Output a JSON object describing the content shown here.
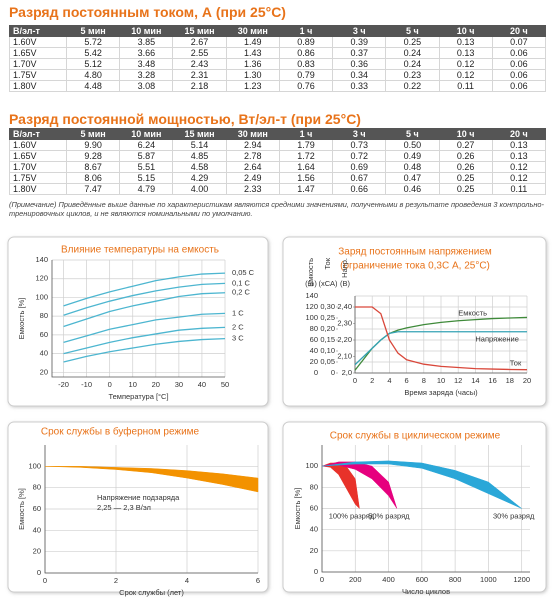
{
  "tables": [
    {
      "title": "Разряд постоянным током, А (при 25°С)",
      "header": [
        "В/эл-т",
        "5 мин",
        "10 мин",
        "15 мин",
        "30 мин",
        "1 ч",
        "3 ч",
        "5 ч",
        "10 ч",
        "20 ч"
      ],
      "rows": [
        [
          "1.60V",
          "5.72",
          "3.85",
          "2.67",
          "1.49",
          "0.89",
          "0.39",
          "0.25",
          "0.13",
          "0.07"
        ],
        [
          "1.65V",
          "5.42",
          "3.66",
          "2.55",
          "1.43",
          "0.86",
          "0.37",
          "0.24",
          "0.13",
          "0.06"
        ],
        [
          "1.70V",
          "5.12",
          "3.48",
          "2.43",
          "1.36",
          "0.83",
          "0.36",
          "0.24",
          "0.12",
          "0.06"
        ],
        [
          "1.75V",
          "4.80",
          "3.28",
          "2.31",
          "1.30",
          "0.79",
          "0.34",
          "0.23",
          "0.12",
          "0.06"
        ],
        [
          "1.80V",
          "4.48",
          "3.08",
          "2.18",
          "1.23",
          "0.76",
          "0.33",
          "0.22",
          "0.11",
          "0.06"
        ]
      ]
    },
    {
      "title": "Разряд постоянной мощностью, Вт/эл-т (при 25°С)",
      "header": [
        "В/эл-т",
        "5 мин",
        "10 мин",
        "15 мин",
        "30 мин",
        "1 ч",
        "3 ч",
        "5 ч",
        "10 ч",
        "20 ч"
      ],
      "rows": [
        [
          "1.60V",
          "9.90",
          "6.24",
          "5.14",
          "2.94",
          "1.79",
          "0.73",
          "0.50",
          "0.27",
          "0.13"
        ],
        [
          "1.65V",
          "9.28",
          "5.87",
          "4.85",
          "2.78",
          "1.72",
          "0.72",
          "0.49",
          "0.26",
          "0.13"
        ],
        [
          "1.70V",
          "8.67",
          "5.51",
          "4.58",
          "2.64",
          "1.64",
          "0.69",
          "0.48",
          "0.26",
          "0.12"
        ],
        [
          "1.75V",
          "8.06",
          "5.15",
          "4.29",
          "2.49",
          "1.56",
          "0.67",
          "0.47",
          "0.25",
          "0.12"
        ],
        [
          "1.80V",
          "7.47",
          "4.79",
          "4.00",
          "2.33",
          "1.47",
          "0.66",
          "0.46",
          "0.25",
          "0.11"
        ]
      ]
    }
  ],
  "note": "(Примечание) Приведённые выше данные по характеристикам являются средними значениями, полученными в результате проведения 3 контрольно-тренировочных циклов, и не являются номинальными по умолчанию.",
  "chart_data": [
    {
      "type": "line",
      "title": [
        "Влияние температуры на емкость"
      ],
      "ylabel": "Емкость [%]",
      "xlabel": "Температура [°С]",
      "x": [
        -20,
        -10,
        0,
        10,
        20,
        30,
        40,
        50
      ],
      "xlim": [
        -25,
        50
      ],
      "xticks": [
        -20,
        -10,
        0,
        10,
        20,
        30,
        40,
        50
      ],
      "ylim": [
        15,
        140
      ],
      "yticks": [
        20,
        40,
        60,
        80,
        100,
        120,
        140
      ],
      "grid": true,
      "series": [
        {
          "name": "0,05 С",
          "color": "#4db6d0",
          "values": [
            91,
            99,
            106,
            112,
            118,
            122,
            125,
            126
          ]
        },
        {
          "name": "0,1 С",
          "color": "#4db6d0",
          "values": [
            81,
            89,
            96,
            102,
            107,
            111,
            114,
            115
          ]
        },
        {
          "name": "0,2 С",
          "color": "#4db6d0",
          "values": [
            69,
            77,
            85,
            91,
            96,
            101,
            104,
            105
          ]
        },
        {
          "name": "1 С",
          "color": "#4db6d0",
          "values": [
            52,
            59,
            66,
            71,
            76,
            79,
            82,
            83
          ]
        },
        {
          "name": "2 С",
          "color": "#4db6d0",
          "values": [
            40,
            46,
            52,
            57,
            61,
            65,
            67,
            68
          ]
        },
        {
          "name": "3 С",
          "color": "#4db6d0",
          "values": [
            31,
            37,
            42,
            46,
            50,
            53,
            55,
            56
          ]
        }
      ]
    },
    {
      "type": "line",
      "title": [
        "Заряд постоянным напряжением",
        "(ограничение тока 0,3С А, 25°С)"
      ],
      "xlabel": "Время заряда (часы)",
      "ylabel": "Емкость",
      "yunit": "(%)",
      "y2label": "Ток",
      "y2unit": "(хСА)",
      "y3label": "Напр.",
      "y3unit": "(В)",
      "x": [
        0,
        1,
        2,
        3,
        4,
        5,
        6,
        8,
        10,
        12,
        14,
        16,
        18,
        20
      ],
      "xlim": [
        0,
        20
      ],
      "xticks": [
        0,
        2,
        4,
        6,
        8,
        10,
        12,
        14,
        16,
        18,
        20
      ],
      "ylim": [
        0,
        140
      ],
      "yticks": [
        140,
        120,
        100,
        80,
        60,
        40,
        20,
        0
      ],
      "y2lim": [
        0,
        0.35
      ],
      "y2ticks": [
        {
          "value": 0.3,
          "label": "0,30"
        },
        {
          "value": 0.25,
          "label": "0,25"
        },
        {
          "value": 0.2,
          "label": "0,20"
        },
        {
          "value": 0.15,
          "label": "0,15"
        },
        {
          "value": 0.1,
          "label": "0,10"
        },
        {
          "value": 0.05,
          "label": "0,05"
        },
        0
      ],
      "y3lim": [
        2.0,
        2.4667
      ],
      "y3ticks": [
        {
          "value": 2.4,
          "label": "2,40"
        },
        {
          "value": 2.3,
          "label": "2,30"
        },
        {
          "value": 2.2,
          "label": "2,20"
        },
        {
          "value": 2.1,
          "label": "2,10"
        },
        {
          "value": 2.0,
          "label": "2,0"
        }
      ],
      "grid": true,
      "series": [
        {
          "name": "Емкость",
          "axis": "y",
          "color": "#3f8a3a",
          "values": [
            5,
            25,
            45,
            60,
            72,
            78,
            82,
            88,
            92,
            95,
            97,
            99,
            100,
            101
          ]
        },
        {
          "name": "Напряжение",
          "axis": "y3",
          "color": "#35a3b5",
          "values": [
            2.05,
            2.1,
            2.15,
            2.2,
            2.24,
            2.25,
            2.25,
            2.25,
            2.25,
            2.25,
            2.25,
            2.25,
            2.25,
            2.25
          ]
        },
        {
          "name": "Ток",
          "axis": "y2",
          "color": "#d9473a",
          "values": [
            0.3,
            0.3,
            0.3,
            0.27,
            0.15,
            0.09,
            0.06,
            0.04,
            0.03,
            0.025,
            0.02,
            0.018,
            0.016,
            0.015
          ]
        }
      ]
    },
    {
      "type": "band",
      "title": [
        "Срок службы в буферном режиме"
      ],
      "ylabel": "Емкость [%]",
      "xlabel": "Срок службы (лет)",
      "xlim": [
        0,
        6
      ],
      "xticks": [
        0,
        2,
        4,
        6
      ],
      "ylim": [
        0,
        120
      ],
      "yticks": [
        0,
        20,
        40,
        60,
        80,
        100
      ],
      "grid": true,
      "annotation": [
        "Напряжение подзаряда",
        "2,25 — 2,3 В/эл"
      ],
      "bands": [
        {
          "color": "#f39200",
          "x": [
            0,
            1,
            2,
            3,
            4,
            5,
            6
          ],
          "upper": [
            100,
            100,
            99,
            98,
            96,
            93,
            89
          ],
          "lower": [
            100,
            99,
            97,
            94,
            89,
            83,
            76
          ]
        }
      ]
    },
    {
      "type": "band",
      "title": [
        "Срок службы в циклическом режиме"
      ],
      "ylabel": "Емкость [%]",
      "xlabel": "Число циклов",
      "xlim": [
        0,
        1250
      ],
      "xticks": [
        0,
        200,
        400,
        600,
        800,
        1000,
        1200
      ],
      "ylim": [
        0,
        120
      ],
      "yticks": [
        0,
        20,
        40,
        60,
        80,
        100
      ],
      "grid": true,
      "bands": [
        {
          "name": "100% разряд",
          "color": "#e8322a",
          "x": [
            0,
            50,
            100,
            150,
            200,
            225
          ],
          "upper": [
            100,
            103,
            103,
            99,
            88,
            60
          ],
          "lower": [
            100,
            99,
            92,
            78,
            64,
            60
          ]
        },
        {
          "name": "50% разряд",
          "color": "#e6007e",
          "x": [
            0,
            100,
            200,
            300,
            400,
            450
          ],
          "upper": [
            100,
            104,
            104,
            100,
            85,
            60
          ],
          "lower": [
            100,
            101,
            97,
            88,
            72,
            60
          ]
        },
        {
          "name": "30% разряд",
          "color": "#2aa7d8",
          "x": [
            0,
            200,
            400,
            600,
            800,
            1000,
            1200
          ],
          "upper": [
            100,
            104,
            105,
            103,
            96,
            85,
            60
          ],
          "lower": [
            100,
            102,
            102,
            98,
            88,
            74,
            60
          ]
        }
      ]
    }
  ]
}
